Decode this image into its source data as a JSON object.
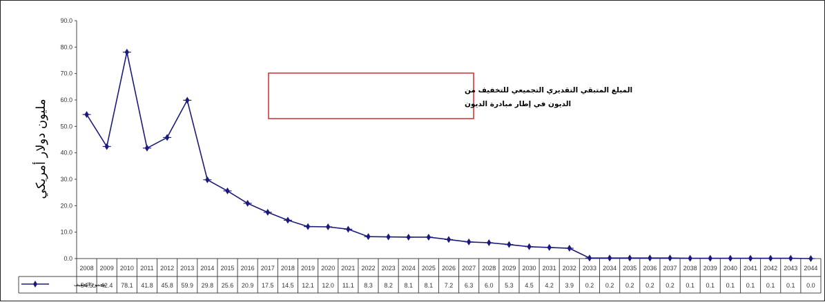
{
  "chart_data": {
    "type": "line",
    "ylabel": "مليون دولار أمريكي",
    "annotation": [
      "المبلغ المتبقي التقديري التجميعي للتخفيف من",
      "الديون في إطار مبادرة الديون"
    ],
    "series_name": "مجموع التخفيف",
    "ylim": [
      0,
      90
    ],
    "yticks": [
      "0.0",
      "10.0",
      "20.0",
      "30.0",
      "40.0",
      "50.0",
      "60.0",
      "70.0",
      "80.0",
      "90.0"
    ],
    "grid": false,
    "legend": "bottom-left data table",
    "colors": {
      "line": "#1a1a7a",
      "marker": "#1a1a7a",
      "annotation_border": "#d12b2b"
    },
    "categories": [
      "2008",
      "2009",
      "2010",
      "2011",
      "2012",
      "2013",
      "2014",
      "2015",
      "2016",
      "2017",
      "2018",
      "2019",
      "2020",
      "2021",
      "2022",
      "2023",
      "2024",
      "2025",
      "2026",
      "2027",
      "2028",
      "2029",
      "2030",
      "2031",
      "2032",
      "2033",
      "2034",
      "2035",
      "2036",
      "2037",
      "2038",
      "2039",
      "2040",
      "2041",
      "2042",
      "2043",
      "2044"
    ],
    "values": [
      54.5,
      42.4,
      78.1,
      41.8,
      45.8,
      59.9,
      29.8,
      25.6,
      20.9,
      17.5,
      14.5,
      12.1,
      12.0,
      11.1,
      8.3,
      8.2,
      8.1,
      8.1,
      7.2,
      6.3,
      6.0,
      5.3,
      4.5,
      4.2,
      3.9,
      0.2,
      0.2,
      0.2,
      0.2,
      0.2,
      0.1,
      0.1,
      0.1,
      0.1,
      0.1,
      0.1,
      0.0
    ],
    "value_labels": [
      "54.5",
      "42.4",
      "78.1",
      "41.8",
      "45.8",
      "59.9",
      "29.8",
      "25.6",
      "20.9",
      "17.5",
      "14.5",
      "12.1",
      "12.0",
      "11.1",
      "8.3",
      "8.2",
      "8.1",
      "8.1",
      "7.2",
      "6.3",
      "6.0",
      "5.3",
      "4.5",
      "4.2",
      "3.9",
      "0.2",
      "0.2",
      "0.2",
      "0.2",
      "0.2",
      "0.1",
      "0.1",
      "0.1",
      "0.1",
      "0.1",
      "0.1",
      "0.0"
    ]
  }
}
